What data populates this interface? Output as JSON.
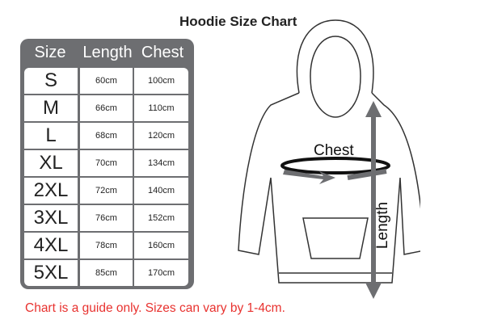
{
  "title": "Hoodie Size Chart",
  "table": {
    "headers": [
      "Size",
      "Length",
      "Chest"
    ],
    "rows": [
      {
        "size": "S",
        "length": "60cm",
        "chest": "100cm"
      },
      {
        "size": "M",
        "length": "66cm",
        "chest": "110cm"
      },
      {
        "size": "L",
        "length": "68cm",
        "chest": "120cm"
      },
      {
        "size": "XL",
        "length": "70cm",
        "chest": "134cm"
      },
      {
        "size": "2XL",
        "length": "72cm",
        "chest": "140cm"
      },
      {
        "size": "3XL",
        "length": "76cm",
        "chest": "152cm"
      },
      {
        "size": "4XL",
        "length": "78cm",
        "chest": "160cm"
      },
      {
        "size": "5XL",
        "length": "85cm",
        "chest": "170cm"
      }
    ]
  },
  "diagram": {
    "chest_label": "Chest",
    "length_label": "Length",
    "arrow_color": "#6d6e71"
  },
  "note": "Chart is a guide only. Sizes can vary by 1-4cm."
}
